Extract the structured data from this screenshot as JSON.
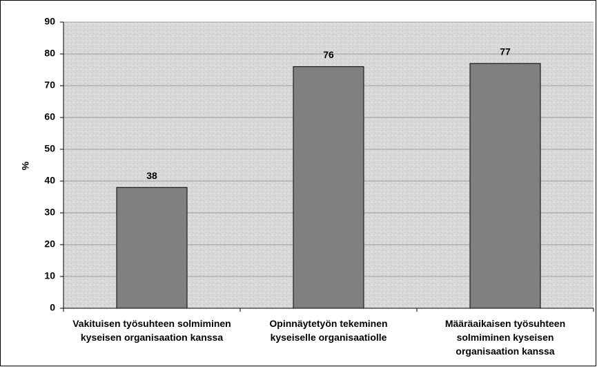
{
  "chart_data": {
    "type": "bar",
    "categories": [
      "Vakituisen työsuhteen solmiminen\nkyseisen organisaation kanssa",
      "Opinnäytetyön tekeminen\nkyseiselle organisaatiolle",
      "Määräaikaisen työsuhteen\nsolmiminen kyseisen\norganisaation kanssa"
    ],
    "values": [
      38,
      76,
      77
    ],
    "color": "#808080",
    "y_label": "%",
    "ylim": [
      0,
      90
    ],
    "yticks": [
      0,
      10,
      20,
      30,
      40,
      50,
      60,
      70,
      80,
      90
    ],
    "grid": true
  }
}
